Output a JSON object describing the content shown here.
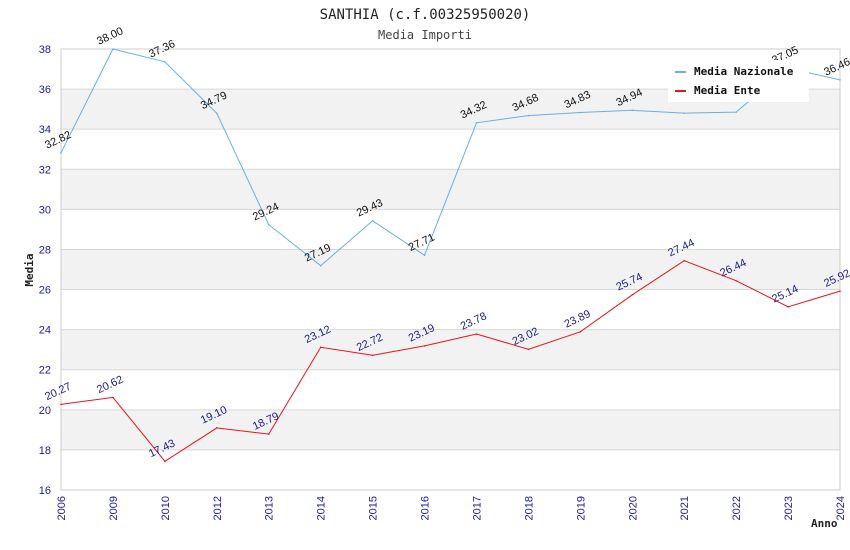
{
  "chart_data": {
    "type": "line",
    "title": "SANTHIA (c.f.00325950020)",
    "subtitle": "Media Importi",
    "xlabel": "Anno",
    "ylabel": "Media",
    "ylim": [
      16,
      38
    ],
    "yticks": [
      16,
      18,
      20,
      22,
      24,
      26,
      28,
      30,
      32,
      34,
      36,
      38
    ],
    "categories": [
      "2006",
      "2009",
      "2010",
      "2012",
      "2013",
      "2014",
      "2015",
      "2016",
      "2017",
      "2018",
      "2019",
      "2020",
      "2021",
      "2022",
      "2023",
      "2024"
    ],
    "series": [
      {
        "name": "Media Nazionale",
        "color": "#6aaee6",
        "values": [
          32.82,
          38.0,
          37.36,
          34.79,
          29.24,
          27.19,
          29.43,
          27.71,
          34.32,
          34.68,
          34.83,
          34.94,
          34.8,
          34.85,
          37.05,
          36.46
        ],
        "labels": [
          "32.82",
          "38.00",
          "37.36",
          "34.79",
          "29.24",
          "27.19",
          "29.43",
          "27.71",
          "34.32",
          "34.68",
          "34.83",
          "34.94",
          "",
          "",
          "37.05",
          "36.46"
        ]
      },
      {
        "name": "Media Ente",
        "color": "#e8141b",
        "values": [
          20.27,
          20.62,
          17.43,
          19.1,
          18.79,
          23.12,
          22.72,
          23.19,
          23.78,
          23.02,
          23.89,
          25.74,
          27.44,
          26.44,
          25.14,
          25.92
        ],
        "labels": [
          "20.27",
          "20.62",
          "17.43",
          "19.10",
          "18.79",
          "23.12",
          "22.72",
          "23.19",
          "23.78",
          "23.02",
          "23.89",
          "25.74",
          "27.44",
          "26.44",
          "25.14",
          "25.92"
        ]
      }
    ],
    "legend_position": "top-right",
    "grid": true
  }
}
